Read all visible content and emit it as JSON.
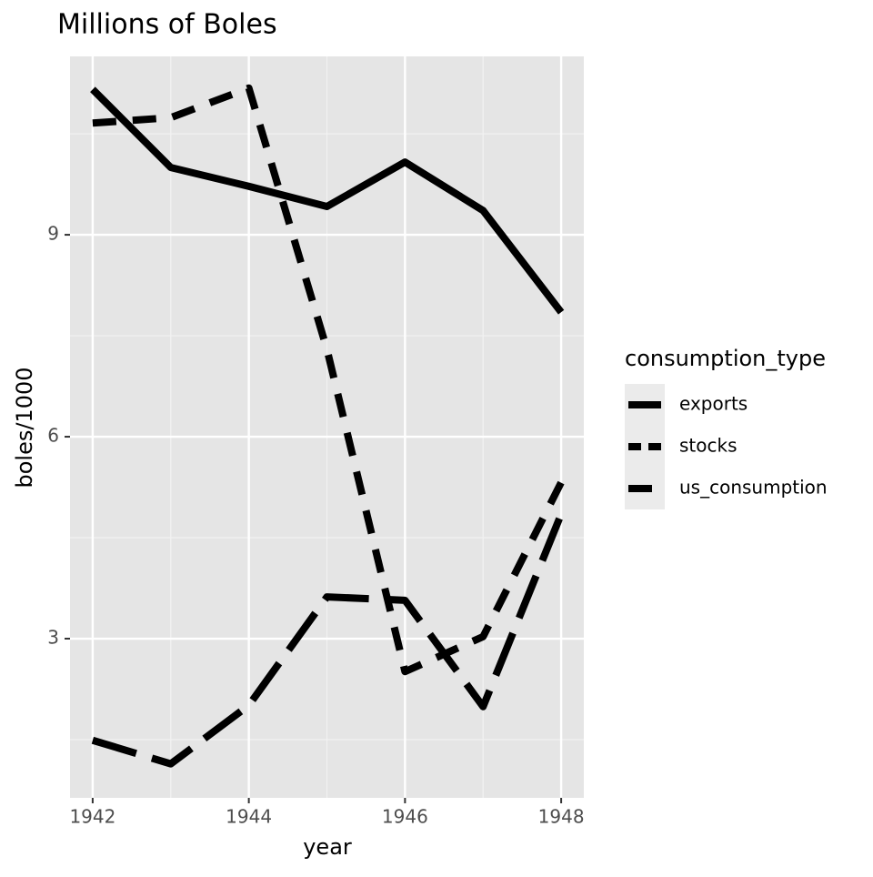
{
  "chart_data": {
    "type": "line",
    "title": "Millions of Boles",
    "x_label": "year",
    "y_label": "boles/1000",
    "x": [
      1942,
      1943,
      1944,
      1945,
      1946,
      1947,
      1948
    ],
    "series": [
      {
        "name": "exports",
        "color": "#000000",
        "linetype": "solid",
        "values": [
          11.16,
          10.0,
          9.72,
          9.42,
          10.08,
          9.36,
          7.85
        ]
      },
      {
        "name": "stocks",
        "color": "#000000",
        "linetype": "dashed",
        "values": [
          10.66,
          10.74,
          11.18,
          7.3,
          2.51,
          3.03,
          5.32
        ]
      },
      {
        "name": "us_consumption",
        "color": "#000000",
        "linetype": "longdash",
        "values": [
          1.49,
          1.14,
          2.01,
          3.62,
          3.57,
          1.99,
          4.85
        ]
      }
    ],
    "legend_title": "consumption_type",
    "legend": "right",
    "xlim": [
      1941.71,
      1948.29
    ],
    "xticks": [
      1942,
      1944,
      1946,
      1948
    ],
    "xminor": [
      1943,
      1945,
      1947
    ],
    "ylim": [
      0.635,
      11.65
    ],
    "yticks": [
      3,
      6,
      9
    ],
    "yminor": [
      1.5,
      4.5,
      7.5,
      10.5
    ],
    "grid": true
  }
}
